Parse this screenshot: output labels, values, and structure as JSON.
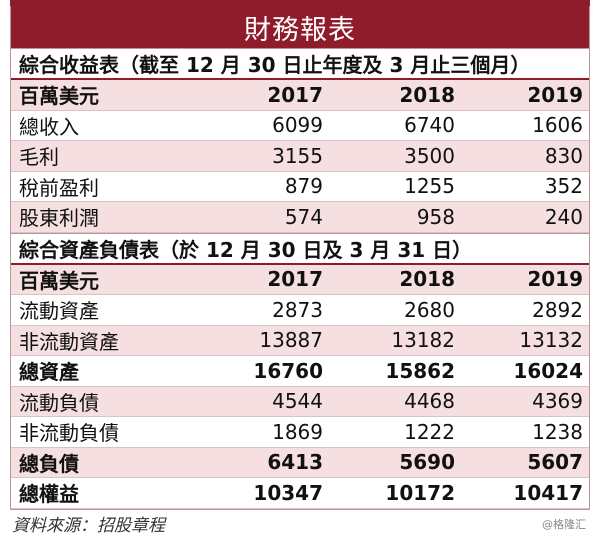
{
  "title": "財務報表",
  "income": {
    "heading": "綜合收益表（截至 12 月 30 日止年度及 3 月止三個月）",
    "unit": "百萬美元",
    "years": [
      "2017",
      "2018",
      "2019"
    ],
    "rows": [
      {
        "label": "總收入",
        "values": [
          "6099",
          "6740",
          "1606"
        ]
      },
      {
        "label": "毛利",
        "values": [
          "3155",
          "3500",
          "830"
        ]
      },
      {
        "label": "稅前盈利",
        "values": [
          "879",
          "1255",
          "352"
        ]
      },
      {
        "label": "股東利潤",
        "values": [
          "574",
          "958",
          "240"
        ]
      }
    ]
  },
  "balance": {
    "heading": "綜合資產負債表（於 12 月 30 日及 3 月 31 日）",
    "unit": "百萬美元",
    "years": [
      "2017",
      "2018",
      "2019"
    ],
    "rows": [
      {
        "label": "流動資產",
        "values": [
          "2873",
          "2680",
          "2892"
        ]
      },
      {
        "label": "非流動資產",
        "values": [
          "13887",
          "13182",
          "13132"
        ]
      },
      {
        "label": "總資產",
        "values": [
          "16760",
          "15862",
          "16024"
        ]
      },
      {
        "label": "流動負債",
        "values": [
          "4544",
          "4468",
          "4369"
        ]
      },
      {
        "label": "非流動負債",
        "values": [
          "1869",
          "1222",
          "1238"
        ]
      },
      {
        "label": "總負債",
        "values": [
          "6413",
          "5690",
          "5607"
        ]
      },
      {
        "label": "總權益",
        "values": [
          "10347",
          "10172",
          "10417"
        ]
      }
    ]
  },
  "source": "資料來源：招股章程",
  "watermark": "@格隆汇",
  "colors": {
    "accent": "#8e1c2a",
    "row_tint": "#f5dfe1"
  }
}
